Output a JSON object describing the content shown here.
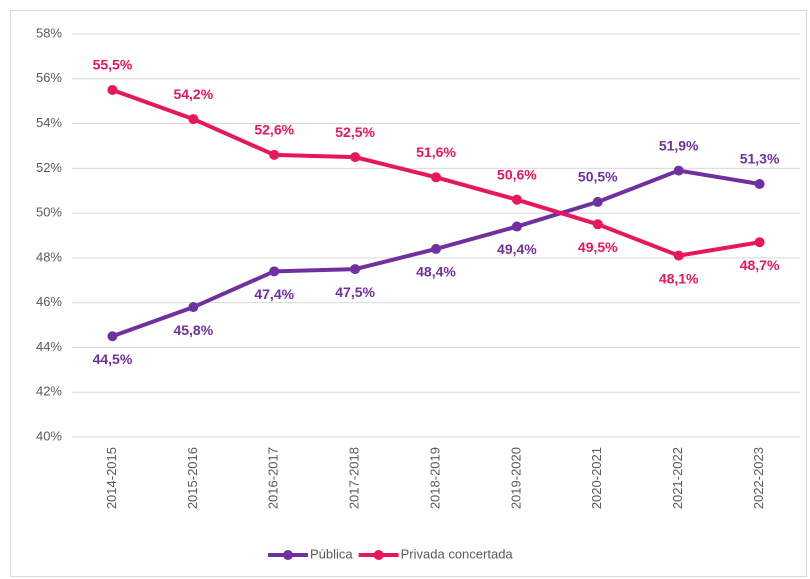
{
  "chart_data": {
    "type": "line",
    "categories": [
      "2014-2015",
      "2015-2016",
      "2016-2017",
      "2017-2018",
      "2018-2019",
      "2019-2020",
      "2020-2021",
      "2021-2022",
      "2022-2023"
    ],
    "series": [
      {
        "name": "Pública",
        "color": "#7030a0",
        "values": [
          44.5,
          45.8,
          47.4,
          47.5,
          48.4,
          49.4,
          50.5,
          51.9,
          51.3
        ],
        "value_labels": [
          "44,5%",
          "45,8%",
          "47,4%",
          "47,5%",
          "48,4%",
          "49,4%",
          "50,5%",
          "51,9%",
          "51,3%"
        ]
      },
      {
        "name": "Privada concertada",
        "color": "#e8175d",
        "values": [
          55.5,
          54.2,
          52.6,
          52.5,
          51.6,
          50.6,
          49.5,
          48.1,
          48.7
        ],
        "value_labels": [
          "55,5%",
          "54,2%",
          "52,6%",
          "52,5%",
          "51,6%",
          "50,6%",
          "49,5%",
          "48,1%",
          "48,7%"
        ]
      }
    ],
    "ylim": [
      40,
      58
    ],
    "yticks": [
      {
        "value": 40,
        "label": "40%"
      },
      {
        "value": 42,
        "label": "42%"
      },
      {
        "value": 44,
        "label": "44%"
      },
      {
        "value": 46,
        "label": "46%"
      },
      {
        "value": 48,
        "label": "48%"
      },
      {
        "value": 50,
        "label": "50%"
      },
      {
        "value": 52,
        "label": "52%"
      },
      {
        "value": 54,
        "label": "54%"
      },
      {
        "value": 56,
        "label": "56%"
      },
      {
        "value": 58,
        "label": "58%"
      }
    ],
    "grid": true,
    "legend": "bottom"
  }
}
